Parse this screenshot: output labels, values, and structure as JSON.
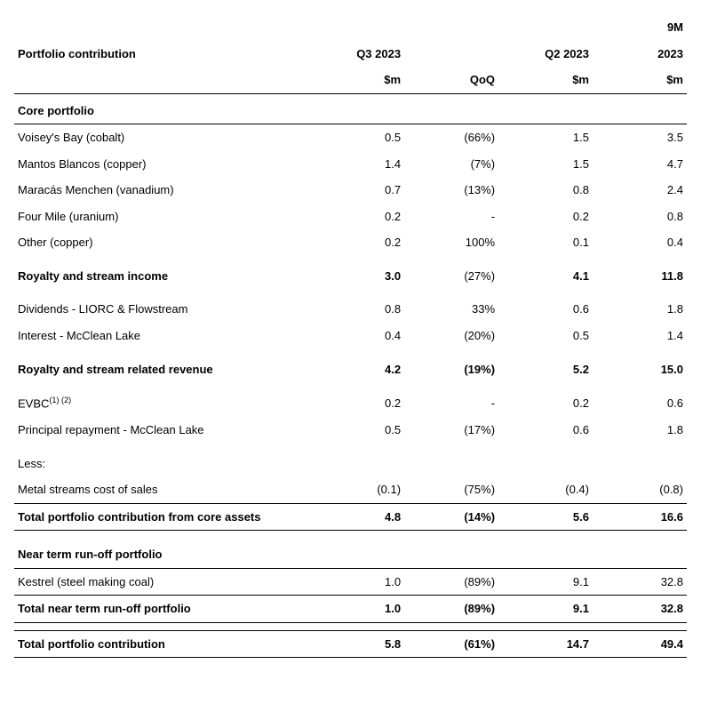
{
  "header": {
    "title": "Portfolio contribution",
    "col_q3": "Q3 2023",
    "col_qoq_blank": "",
    "col_q2": "Q2 2023",
    "col_9m_top": "9M",
    "col_9m_bottom": "2023",
    "unit_m": "$m",
    "unit_qoq": "QoQ"
  },
  "sections": {
    "core_title": "Core portfolio",
    "runoff_title": "Near term run-off portfolio",
    "less_label": "Less:"
  },
  "rows": {
    "voisey": {
      "label": "Voisey's Bay (cobalt)",
      "q3": "0.5",
      "qoq": "(66%)",
      "q2": "1.5",
      "nm": "3.5"
    },
    "mantos": {
      "label": "Mantos Blancos (copper)",
      "q3": "1.4",
      "qoq": "(7%)",
      "q2": "1.5",
      "nm": "4.7"
    },
    "maracas": {
      "label": "Maracás Menchen (vanadium)",
      "q3": "0.7",
      "qoq": "(13%)",
      "q2": "0.8",
      "nm": "2.4"
    },
    "fourmile": {
      "label": "Four Mile (uranium)",
      "q3": "0.2",
      "qoq": "-",
      "q2": "0.2",
      "nm": "0.8"
    },
    "other": {
      "label": "Other (copper)",
      "q3": "0.2",
      "qoq": "100%",
      "q2": "0.1",
      "nm": "0.4"
    },
    "rs_income": {
      "label": "Royalty and stream income",
      "q3": "3.0",
      "qoq": "(27%)",
      "q2": "4.1",
      "nm": "11.8"
    },
    "dividends": {
      "label": "Dividends - LIORC & Flowstream",
      "q3": "0.8",
      "qoq": "33%",
      "q2": "0.6",
      "nm": "1.8"
    },
    "interest": {
      "label": "Interest - McClean Lake",
      "q3": "0.4",
      "qoq": "(20%)",
      "q2": "0.5",
      "nm": "1.4"
    },
    "rs_rev": {
      "label": "Royalty and stream related revenue",
      "q3": "4.2",
      "qoq": "(19%)",
      "q2": "5.2",
      "nm": "15.0"
    },
    "evbc": {
      "label": "EVBC",
      "sup": "(1) (2)",
      "q3": "0.2",
      "qoq": "-",
      "q2": "0.2",
      "nm": "0.6"
    },
    "principal": {
      "label": "Principal repayment - McClean Lake",
      "q3": "0.5",
      "qoq": "(17%)",
      "q2": "0.6",
      "nm": "1.8"
    },
    "cos": {
      "label": "Metal streams cost of sales",
      "q3": "(0.1)",
      "qoq": "(75%)",
      "q2": "(0.4)",
      "nm": "(0.8)"
    },
    "core_total": {
      "label": "Total portfolio contribution from core assets",
      "q3": "4.8",
      "qoq": "(14%)",
      "q2": "5.6",
      "nm": "16.6"
    },
    "kestrel": {
      "label": "Kestrel (steel making coal)",
      "q3": "1.0",
      "qoq": "(89%)",
      "q2": "9.1",
      "nm": "32.8"
    },
    "runoff_total": {
      "label": "Total near term run-off portfolio",
      "q3": "1.0",
      "qoq": "(89%)",
      "q2": "9.1",
      "nm": "32.8"
    },
    "grand_total": {
      "label": "Total portfolio contribution",
      "q3": "5.8",
      "qoq": "(61%)",
      "q2": "14.7",
      "nm": "49.4"
    }
  }
}
